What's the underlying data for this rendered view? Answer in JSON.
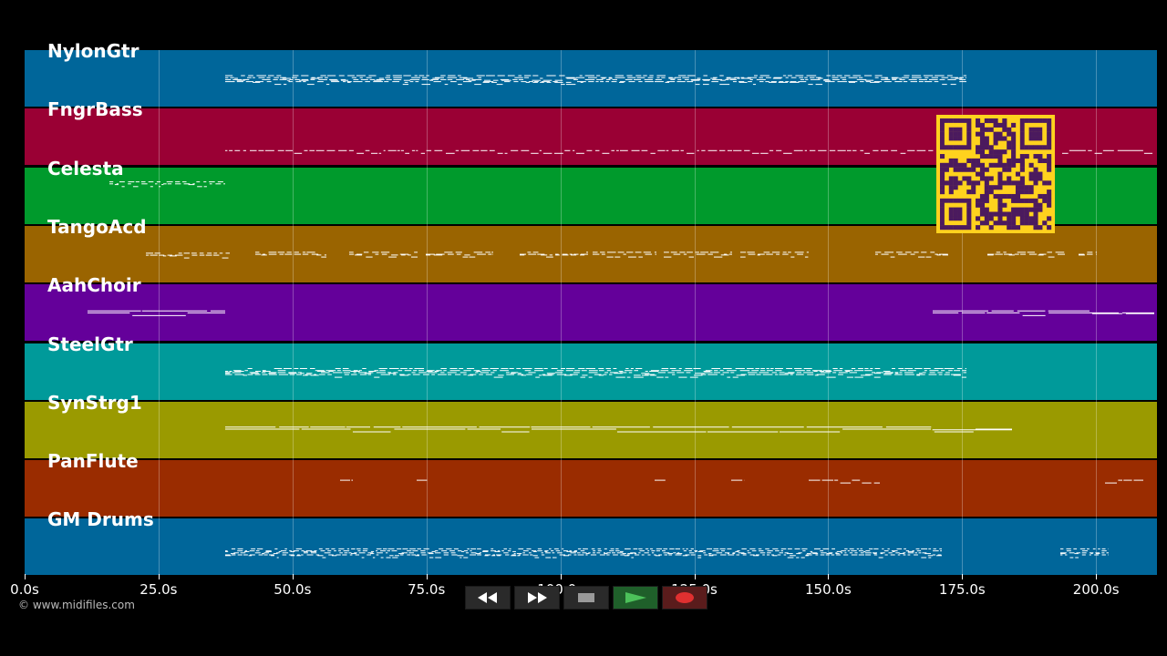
{
  "tracks": [
    {
      "name": "NylonGtr",
      "color": "#00669a"
    },
    {
      "name": "FngrBass",
      "color": "#9a0034"
    },
    {
      "name": "Celesta",
      "color": "#009a2c"
    },
    {
      "name": "TangoAcd",
      "color": "#9a6400"
    },
    {
      "name": "AahChoir",
      "color": "#64009a"
    },
    {
      "name": "SteelGtr",
      "color": "#009a9a"
    },
    {
      "name": "SynStrg1",
      "color": "#9a9a00"
    },
    {
      "name": "PanFlute",
      "color": "#9a2c00"
    },
    {
      "name": "GM Drums",
      "color": "#00669a"
    }
  ],
  "timeline": {
    "ticks": [
      "0.0s",
      "25.0s",
      "50.0s",
      "75.0s",
      "100.0s",
      "125.0s",
      "150.0s",
      "175.0s",
      "200.0s"
    ]
  },
  "copyright": "© www.midifiles.com",
  "controls": {
    "rewind_icon": "rewind-icon",
    "forward_icon": "fast-forward-icon",
    "stop_icon": "stop-icon",
    "play_icon": "play-icon",
    "record_icon": "record-icon"
  },
  "qr_colors": {
    "dark": "#4b1a5e",
    "light": "#ffd21e"
  }
}
